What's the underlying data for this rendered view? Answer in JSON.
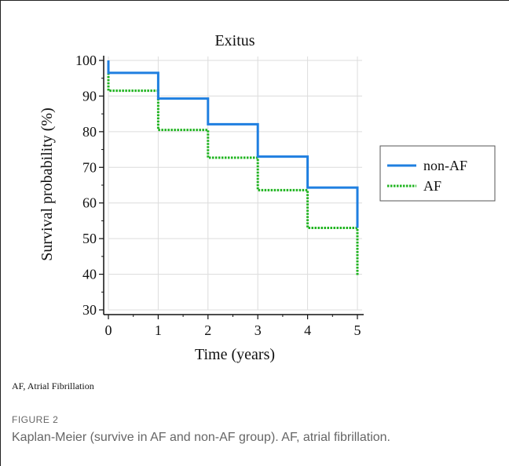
{
  "figure": {
    "note": "AF, Atrial Fibrillation",
    "label": "FIGURE 2",
    "caption": "Kaplan-Meier (survive in AF and non-AF group). AF, atrial fibrillation."
  },
  "chart_data": {
    "type": "line",
    "step": true,
    "title": "Exitus",
    "xlabel": "Time (years)",
    "ylabel": "Survival probability (%)",
    "xlim": [
      0,
      5
    ],
    "ylim": [
      30,
      100
    ],
    "xticks": [
      "0",
      "1",
      "2",
      "3",
      "4",
      "5"
    ],
    "yticks": [
      "30",
      "40",
      "50",
      "60",
      "70",
      "80",
      "90",
      "100"
    ],
    "grid": true,
    "legend_position": "right",
    "series": [
      {
        "name": "non-AF",
        "color": "#1f7fe0",
        "style": "solid",
        "x": [
          0,
          0,
          1,
          1,
          2,
          2,
          3,
          3,
          4,
          4,
          5,
          5
        ],
        "y": [
          100,
          96.5,
          96.5,
          89.3,
          89.3,
          82.1,
          82.1,
          73.0,
          73.0,
          64.3,
          64.3,
          53.0
        ]
      },
      {
        "name": "AF",
        "color": "#1fb41f",
        "style": "dotted",
        "x": [
          0,
          0,
          1,
          1,
          2,
          2,
          3,
          3,
          4,
          4,
          5,
          5
        ],
        "y": [
          100,
          91.5,
          91.5,
          80.5,
          80.5,
          72.7,
          72.7,
          63.6,
          63.6,
          53.0,
          53.0,
          39.5
        ]
      }
    ]
  }
}
